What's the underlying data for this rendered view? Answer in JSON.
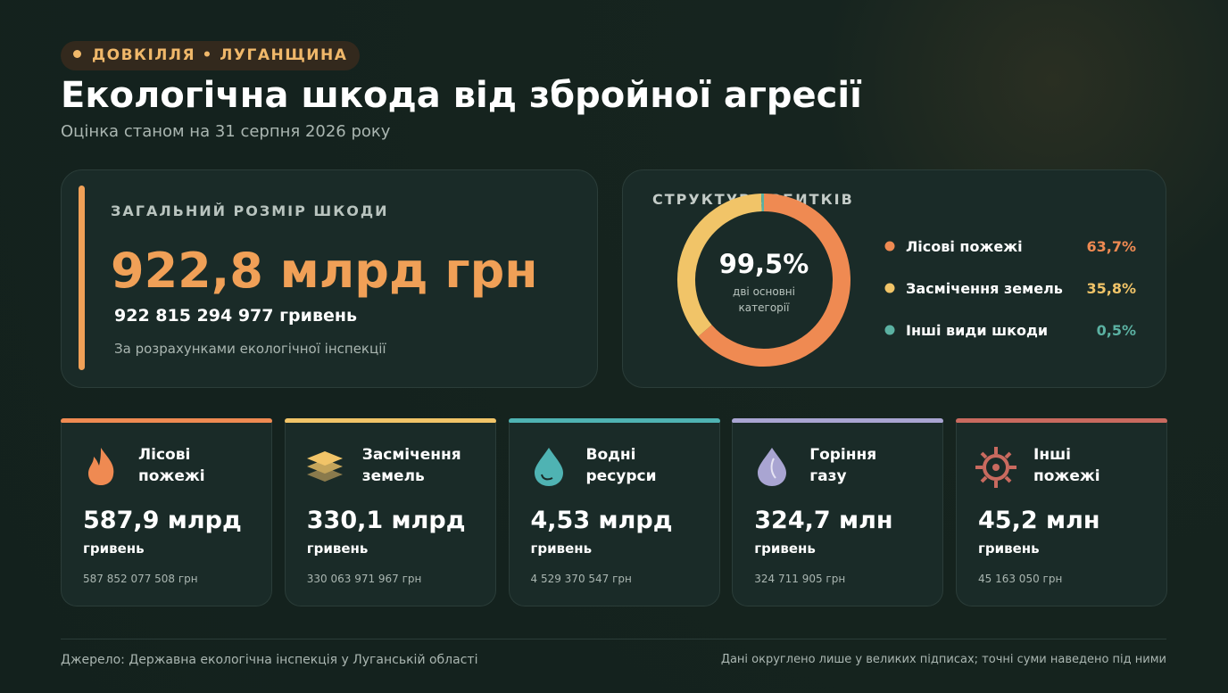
{
  "header": {
    "tag": "ДОВКІЛЛЯ • ЛУГАНЩИНА",
    "title": "Екологічна шкода від збройної агресії",
    "subtitle": "Оцінка станом на 31 серпня 2026 року"
  },
  "summary": {
    "label": "ЗАГАЛЬНИЙ РОЗМІР ШКОДИ",
    "amount": "922,8 млрд грн",
    "exact": "922 815 294 977 гривень",
    "note": "За розрахунками екологічної інспекції"
  },
  "chart_data": {
    "type": "pie",
    "donut": true,
    "title": "СТРУКТУРА ЗБИТКІВ",
    "categories": [
      "Лісові пожежі",
      "Засмічення земель",
      "Інші види шкоди"
    ],
    "values": [
      63.7,
      35.8,
      0.5
    ],
    "value_labels": [
      "63,7%",
      "35,8%",
      "0,5%"
    ],
    "colors": [
      "#ef8a52",
      "#f1c468",
      "#5bb1a2"
    ],
    "center_value": "99,5%",
    "center_note": [
      "дві основні",
      "категорії"
    ]
  },
  "cards": [
    {
      "title": [
        "Лісові",
        "пожежі"
      ],
      "amount": "587,9 млрд",
      "unit": "гривень",
      "exact": "587 852 077 508 грн"
    },
    {
      "title": [
        "Засмічення",
        "земель"
      ],
      "amount": "330,1 млрд",
      "unit": "гривень",
      "exact": "330 063 971 967 грн"
    },
    {
      "title": [
        "Водні",
        "ресурси"
      ],
      "amount": "4,53 млрд",
      "unit": "гривень",
      "exact": "4 529 370 547 грн"
    },
    {
      "title": [
        "Горіння",
        "газу"
      ],
      "amount": "324,7 млн",
      "unit": "гривень",
      "exact": "324 711 905 грн"
    },
    {
      "title": [
        "Інші",
        "пожежі"
      ],
      "amount": "45,2 млн",
      "unit": "гривень",
      "exact": "45 163 050 грн"
    }
  ],
  "footer": {
    "source": "Джерело: Державна екологічна інспекція у Луганській області",
    "note": "Дані округлено лише у великих підписах; точні суми наведено під ними"
  }
}
